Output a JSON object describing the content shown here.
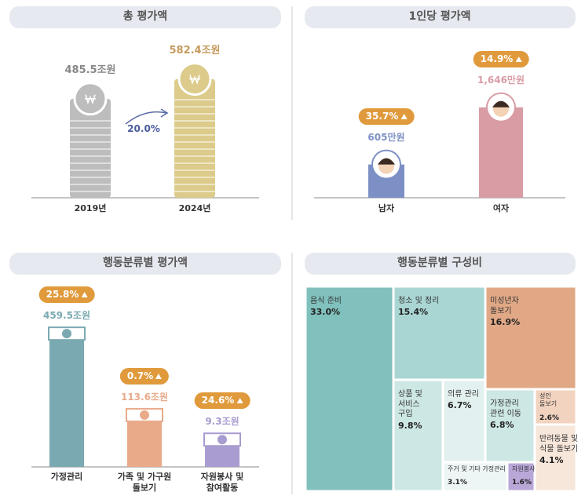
{
  "chart_data": [
    {
      "type": "bar",
      "title": "총 평가액",
      "categories": [
        "2019년",
        "2024년"
      ],
      "values": [
        485.5,
        582.4
      ],
      "value_labels": [
        "485.5조원",
        "582.4조원"
      ],
      "colors": [
        "#bdbdbd",
        "#dccb8a"
      ],
      "change": "20.0%"
    },
    {
      "type": "bar",
      "title": "1인당 평가액",
      "categories": [
        "남자",
        "여자"
      ],
      "values": [
        605,
        1646
      ],
      "value_labels": [
        "605만원",
        "1,646만원"
      ],
      "colors": [
        "#7d90c6",
        "#d99ca5"
      ],
      "changes": [
        "35.7%",
        "14.9%"
      ]
    },
    {
      "type": "bar",
      "title": "행동분류별 평가액",
      "categories": [
        "가정관리",
        "가족 및 가구원\n돌보기",
        "자원봉사 및\n참여활동"
      ],
      "values": [
        459.5,
        113.6,
        9.3
      ],
      "value_labels": [
        "459.5조원",
        "113.6조원",
        "9.3조원"
      ],
      "colors": [
        "#7aa9b1",
        "#e9aa8a",
        "#a99cd1"
      ],
      "changes": [
        "25.8%",
        "0.7%",
        "24.6%"
      ]
    },
    {
      "type": "treemap",
      "title": "행동분류별 구성비",
      "categories": [
        "음식 준비",
        "청소 및 정리",
        "미성년자\n돌보기",
        "상품 및\n서비스\n구입",
        "의류 관리",
        "주거 및 기타 가정관리",
        "가정관리\n관련 이동",
        "성인\n돌보기",
        "반려동물 및\n식물 돌보기",
        "자원봉사"
      ],
      "values": [
        33.0,
        15.4,
        16.9,
        9.8,
        6.7,
        3.1,
        6.8,
        2.6,
        4.1,
        1.6
      ],
      "value_labels": [
        "33.0%",
        "15.4%",
        "16.9%",
        "9.8%",
        "6.7%",
        "3.1%",
        "6.8%",
        "2.6%",
        "4.1%",
        "1.6%"
      ],
      "colors": [
        "#80c0bd",
        "#a9d6d3",
        "#e1a886",
        "#cde7e4",
        "#e2f1ef",
        "#edf6f5",
        "#cde7e4",
        "#f2d3bf",
        "#f7e6da",
        "#b9a7d8"
      ]
    }
  ]
}
